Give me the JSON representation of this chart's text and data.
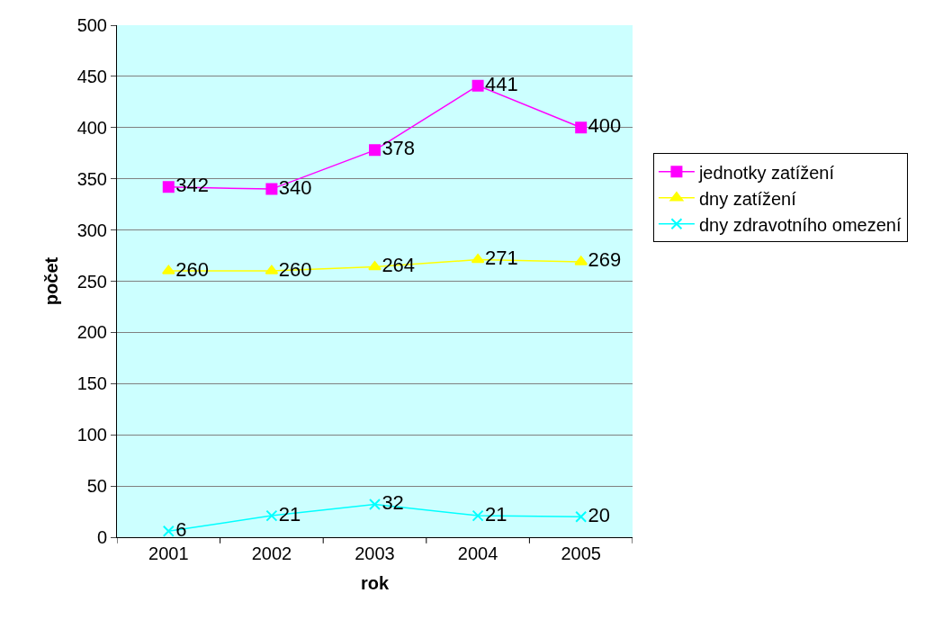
{
  "chart_data": {
    "type": "line",
    "xlabel": "rok",
    "ylabel": "počet",
    "categories": [
      "2001",
      "2002",
      "2003",
      "2004",
      "2005"
    ],
    "series": [
      {
        "name": "jednotky zatížení",
        "color": "#ff00ff",
        "marker": "square",
        "values": [
          342,
          340,
          378,
          441,
          400
        ]
      },
      {
        "name": "dny zatížení",
        "color": "#ffff00",
        "marker": "triangle",
        "values": [
          260,
          260,
          264,
          271,
          269
        ]
      },
      {
        "name": "dny zdravotního omezení",
        "color": "#00ffff",
        "marker": "cross",
        "values": [
          6,
          21,
          32,
          21,
          20
        ]
      }
    ],
    "ylim": [
      0,
      500
    ],
    "yticks": [
      0,
      50,
      100,
      150,
      200,
      250,
      300,
      350,
      400,
      450,
      500
    ],
    "grid": "y",
    "legend": "right",
    "data_labels": true
  }
}
